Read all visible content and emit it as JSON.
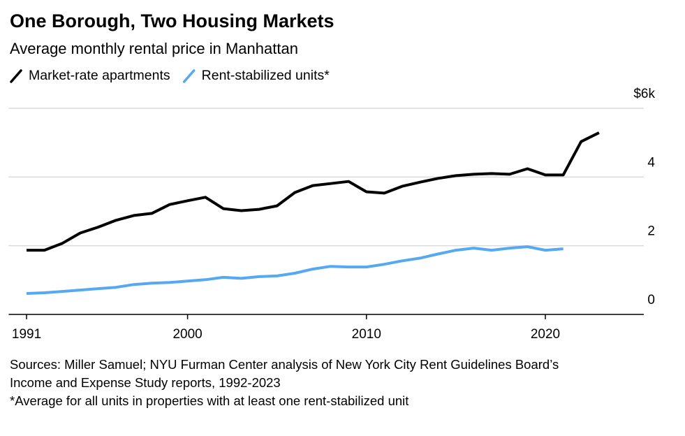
{
  "chart_data": {
    "type": "line",
    "title": "One Borough, Two Housing Markets",
    "subtitle": "Average monthly rental price in Manhattan",
    "x": [
      1991,
      1992,
      1993,
      1994,
      1995,
      1996,
      1997,
      1998,
      1999,
      2000,
      2001,
      2002,
      2003,
      2004,
      2005,
      2006,
      2007,
      2008,
      2009,
      2010,
      2011,
      2012,
      2013,
      2014,
      2015,
      2016,
      2017,
      2018,
      2019,
      2020,
      2021,
      2022,
      2023
    ],
    "series": [
      {
        "name": "Market-rate apartments",
        "color": "#000000",
        "values": [
          1.87,
          1.87,
          2.07,
          2.37,
          2.54,
          2.74,
          2.88,
          2.94,
          3.2,
          3.31,
          3.41,
          3.08,
          3.02,
          3.06,
          3.16,
          3.55,
          3.75,
          3.81,
          3.87,
          3.57,
          3.53,
          3.73,
          3.85,
          3.96,
          4.04,
          4.08,
          4.1,
          4.08,
          4.24,
          4.06,
          4.06,
          5.03,
          5.29
        ]
      },
      {
        "name": "Rent-stabilized units*",
        "color": "#56a9f1",
        "values": [
          0.61,
          0.63,
          0.67,
          0.71,
          0.75,
          0.79,
          0.87,
          0.91,
          0.93,
          0.97,
          1.01,
          1.08,
          1.05,
          1.1,
          1.12,
          1.2,
          1.32,
          1.4,
          1.38,
          1.38,
          1.46,
          1.56,
          1.64,
          1.76,
          1.87,
          1.93,
          1.87,
          1.93,
          1.97,
          1.87,
          1.91,
          null,
          null
        ]
      }
    ],
    "xlim": [
      1990,
      2025.5
    ],
    "xticks": [
      1991,
      2000,
      2010,
      2020
    ],
    "ylim": [
      0,
      6
    ],
    "yticks": [
      0,
      2,
      4,
      {
        "value": 6,
        "label": "$6k"
      }
    ],
    "grid": true,
    "sources": [
      "Sources: Miller Samuel; NYU Furman Center analysis of New York City Rent Guidelines Board’s",
      "Income and Expense Study reports, 1992-2023"
    ],
    "note": "*Average for all units in properties with at least one rent-stabilized unit"
  }
}
